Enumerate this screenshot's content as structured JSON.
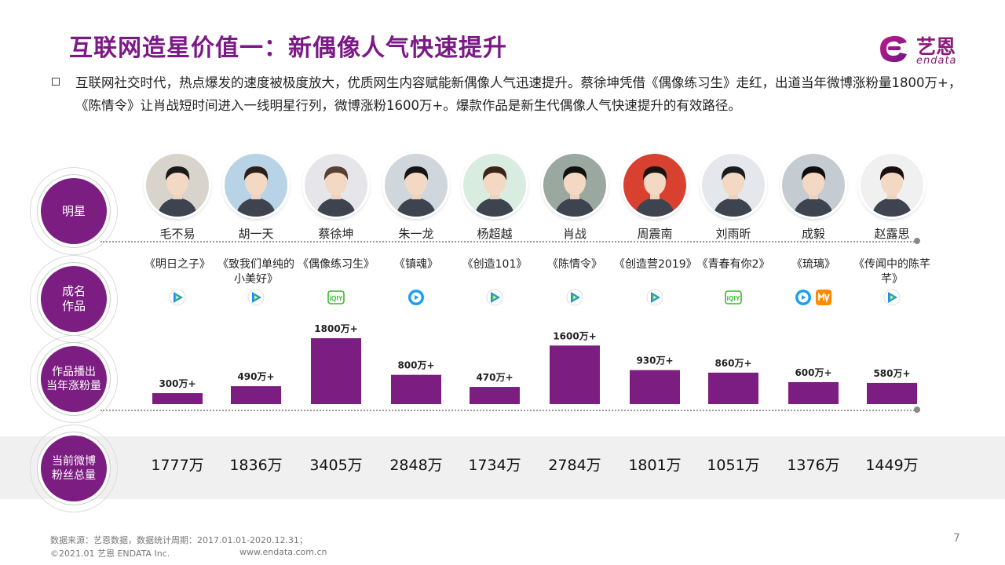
{
  "title": "互联网造星价值一：新偶像人气快速提升",
  "logo": {
    "cn": "艺恩",
    "en": "endata"
  },
  "intro": "互联网社交时代，热点爆发的速度被极度放大，优质网生内容赋能新偶像人气迅速提升。蔡徐坤凭借《偶像练习生》走红，出道当年微博涨粉量1800万+，《陈情令》让肖战短时间进入一线明星行列，微博涨粉1600万+。爆款作品是新生代偶像人气快速提升的有效路径。",
  "row_labels": {
    "star": "明星",
    "work": "成名\n作品",
    "growth": "作品播出\n当年涨粉量",
    "fans": "当前微博\n粉丝总量"
  },
  "colors": {
    "accent": "#7c1d82",
    "bar": "#7c1d82",
    "tencent_blue": "#1e8fe8",
    "tencent_green": "#4bc84b",
    "iqiyi": "#3cb52e",
    "youku": "#1e9ef0",
    "mgtv": "#ff8a00"
  },
  "stars": [
    {
      "name": "毛不易",
      "work": "《明日之子》",
      "platforms": [
        "tencent-video-icon"
      ],
      "growth_label": "300万+",
      "fans": "1777万",
      "avatar_bg": "#d8d4cc",
      "hair": "#1a1a1a"
    },
    {
      "name": "胡一天",
      "work": "《致我们单纯的小美好》",
      "platforms": [
        "tencent-video-icon"
      ],
      "growth_label": "490万+",
      "fans": "1836万",
      "avatar_bg": "#b9d3e6",
      "hair": "#2a2018"
    },
    {
      "name": "蔡徐坤",
      "work": "《偶像练习生》",
      "platforms": [
        "iqiyi-icon"
      ],
      "growth_label": "1800万+",
      "fans": "3405万",
      "avatar_bg": "#e6e6ea",
      "hair": "#5a4030"
    },
    {
      "name": "朱一龙",
      "work": "《镇魂》",
      "platforms": [
        "youku-icon"
      ],
      "growth_label": "800万+",
      "fans": "2848万",
      "avatar_bg": "#cfd6dc",
      "hair": "#151515"
    },
    {
      "name": "杨超越",
      "work": "《创造101》",
      "platforms": [
        "tencent-video-icon"
      ],
      "growth_label": "470万+",
      "fans": "1734万",
      "avatar_bg": "#d9ece0",
      "hair": "#3a2418"
    },
    {
      "name": "肖战",
      "work": "《陈情令》",
      "platforms": [
        "tencent-video-icon"
      ],
      "growth_label": "1600万+",
      "fans": "2784万",
      "avatar_bg": "#9aa8a0",
      "hair": "#101010"
    },
    {
      "name": "周震南",
      "work": "《创造营2019》",
      "platforms": [
        "tencent-video-icon"
      ],
      "growth_label": "930万+",
      "fans": "1801万",
      "avatar_bg": "#d84030",
      "hair": "#1a1410"
    },
    {
      "name": "刘雨昕",
      "work": "《青春有你2》",
      "platforms": [
        "iqiyi-icon"
      ],
      "growth_label": "860万+",
      "fans": "1051万",
      "avatar_bg": "#e4e8ec",
      "hair": "#1c1c1c"
    },
    {
      "name": "成毅",
      "work": "《琉璃》",
      "platforms": [
        "youku-icon",
        "mgtv-icon"
      ],
      "growth_label": "600万+",
      "fans": "1376万",
      "avatar_bg": "#c4ccd2",
      "hair": "#0e0e0e"
    },
    {
      "name": "赵露思",
      "work": "《传闻中的陈芊芊》",
      "platforms": [
        "tencent-video-icon"
      ],
      "growth_label": "580万+",
      "fans": "1449万",
      "avatar_bg": "#f0f0f0",
      "hair": "#1a1010"
    }
  ],
  "chart_data": {
    "type": "bar",
    "title": "",
    "xlabel": "",
    "ylabel": "作品播出当年涨粉量",
    "categories": [
      "毛不易",
      "胡一天",
      "蔡徐坤",
      "朱一龙",
      "杨超越",
      "肖战",
      "周震南",
      "刘雨昕",
      "成毅",
      "赵露思"
    ],
    "values": [
      300,
      490,
      1800,
      800,
      470,
      1600,
      930,
      860,
      600,
      580
    ],
    "data_labels": [
      "300万+",
      "490万+",
      "1800万+",
      "800万+",
      "470万+",
      "1600万+",
      "930万+",
      "860万+",
      "600万+",
      "580万+"
    ],
    "unit": "万",
    "ylim": [
      0,
      1800
    ],
    "grid": false,
    "legend": "none"
  },
  "footer": {
    "source": "数据来源：艺恩数据，数据统计周期：2017.01.01-2020.12.31；",
    "copyright": "©2021.01 艺恩 ENDATA Inc.",
    "website": "www.endata.com.cn",
    "page": "7"
  }
}
